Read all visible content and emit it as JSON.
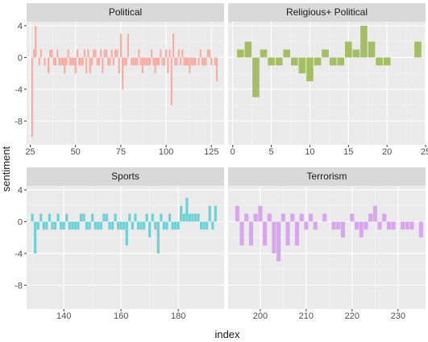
{
  "chart_data": {
    "type": "bar",
    "layout": "facet-grid 2x2, shared y axis, free x axis",
    "xlabel": "index",
    "ylabel": "sentiment",
    "ylim": [
      -11,
      4.5
    ],
    "yticks": [
      4,
      0,
      -4,
      -8
    ],
    "grid": true,
    "legend": "none",
    "panels": [
      {
        "title": "Political",
        "color": "#F8A9A0",
        "xlim": [
          23,
          132
        ],
        "xticks": [
          25,
          50,
          75,
          100,
          125
        ],
        "x": [
          26,
          27,
          28,
          30,
          31,
          33,
          35,
          36,
          37,
          38,
          39,
          40,
          41,
          42,
          43,
          44,
          45,
          46,
          47,
          48,
          49,
          50,
          51,
          52,
          53,
          54,
          55,
          56,
          57,
          58,
          59,
          60,
          61,
          62,
          63,
          64,
          65,
          66,
          67,
          68,
          69,
          70,
          71,
          72,
          73,
          74,
          75,
          76,
          77,
          78,
          79,
          81,
          82,
          83,
          84,
          85,
          86,
          87,
          88,
          89,
          90,
          91,
          92,
          93,
          94,
          95,
          96,
          97,
          98,
          99,
          100,
          101,
          102,
          103,
          104,
          105,
          106,
          107,
          108,
          109,
          110,
          111,
          112,
          113,
          114,
          115,
          116,
          118,
          119,
          120,
          121,
          122,
          123,
          124,
          125,
          127,
          128
        ],
        "y": [
          -10,
          1,
          4,
          -1,
          1,
          -1,
          -2,
          1,
          1,
          -1,
          -1,
          1,
          -1,
          -1,
          -1,
          -2,
          -1,
          1,
          -1,
          -1,
          -1,
          -2,
          1,
          -1,
          -1,
          -1,
          1,
          -2,
          1,
          -2,
          -1,
          1,
          1,
          -1,
          -1,
          1,
          -2,
          1,
          1,
          -1,
          -1,
          1,
          -1,
          1,
          1,
          -2,
          3,
          -4,
          -1,
          -1,
          3,
          -1,
          -1,
          -1,
          -1,
          1,
          -1,
          -2,
          -1,
          -1,
          -1,
          -1,
          1,
          -1,
          -2,
          -1,
          -1,
          1,
          -1,
          -1,
          1,
          -2,
          1,
          -6,
          3,
          -1,
          -1,
          1,
          -1,
          1,
          -1,
          -1,
          -1,
          -2,
          -1,
          -1,
          -1,
          -1,
          1,
          -1,
          -1,
          -1,
          1,
          1,
          -1,
          -1,
          -3
        ]
      },
      {
        "title": "Religious+ Political",
        "color": "#A5BE66",
        "xlim": [
          -0.6,
          25
        ],
        "xticks": [
          0,
          5,
          10,
          15,
          20,
          25
        ],
        "x": [
          1,
          2,
          3,
          4,
          5,
          6,
          7,
          8,
          9,
          10,
          11,
          12,
          13,
          14,
          15,
          16,
          17,
          18,
          19,
          20,
          24
        ],
        "y": [
          1,
          2,
          -5,
          1,
          -1,
          -1,
          1,
          -1,
          -2,
          -3,
          -1,
          1,
          -1,
          -1,
          2,
          1,
          4,
          2,
          -1,
          -1,
          2
        ]
      },
      {
        "title": "Sports",
        "color": "#6FD1D6",
        "xlim": [
          127,
          196
        ],
        "xticks": [
          140,
          160,
          180
        ],
        "x": [
          129,
          130,
          131,
          132,
          133,
          134,
          135,
          136,
          137,
          138,
          139,
          140,
          141,
          142,
          143,
          144,
          145,
          146,
          147,
          148,
          149,
          150,
          151,
          152,
          153,
          154,
          155,
          156,
          157,
          158,
          159,
          160,
          161,
          162,
          163,
          164,
          165,
          166,
          167,
          168,
          169,
          170,
          171,
          172,
          173,
          174,
          175,
          176,
          177,
          178,
          179,
          180,
          181,
          182,
          183,
          184,
          185,
          186,
          187,
          188,
          189,
          190,
          191,
          192,
          193
        ],
        "y": [
          1,
          -4,
          -1,
          1,
          -1,
          -1,
          1,
          -1,
          -1,
          1,
          -1,
          -1,
          1,
          -1,
          -1,
          -1,
          -1,
          1,
          1,
          -1,
          -1,
          1,
          -1,
          -1,
          -1,
          1,
          1,
          -1,
          -1,
          1,
          -1,
          -1,
          -1,
          -3,
          1,
          -1,
          1,
          -1,
          -1,
          -1,
          1,
          -2,
          1,
          -1,
          -4,
          1,
          -1,
          -1,
          1,
          -1,
          -1,
          -1,
          2,
          1,
          3,
          1,
          1,
          1,
          1,
          -1,
          -1,
          -1,
          2,
          -1,
          2
        ]
      },
      {
        "title": "Terrorism",
        "color": "#D8A6EE",
        "xlim": [
          193,
          236
        ],
        "xticks": [
          200,
          210,
          220,
          230
        ],
        "x": [
          195,
          196,
          197,
          198,
          199,
          200,
          201,
          202,
          203,
          204,
          205,
          206,
          207,
          208,
          209,
          210,
          211,
          212,
          214,
          216,
          217,
          218,
          220,
          221,
          222,
          223,
          224,
          225,
          226,
          227,
          228,
          229,
          231,
          232,
          233,
          235
        ],
        "y": [
          2,
          -3,
          1,
          -3,
          1,
          2,
          -3,
          1,
          -4,
          -5,
          1,
          -3,
          1,
          -3,
          1,
          -1,
          1,
          -1,
          1,
          -1,
          -1,
          -2,
          1,
          -1,
          -2,
          -1,
          1,
          2,
          -1,
          1,
          -1,
          -1,
          -1,
          -1,
          -1,
          -2
        ]
      }
    ]
  }
}
